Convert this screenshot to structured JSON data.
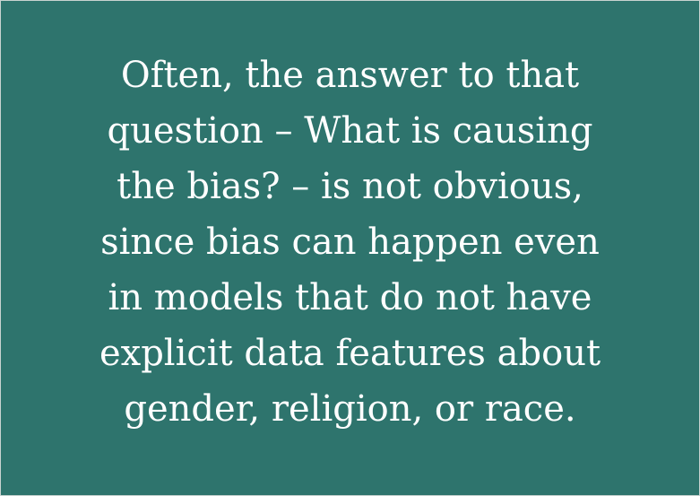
{
  "quote": {
    "lines": [
      "Often, the answer to that",
      "question – What is causing",
      "the bias? – is not obvious,",
      "since bias can happen even",
      "in models that do not have",
      "explicit data features about",
      "gender, religion, or race."
    ]
  },
  "colors": {
    "background": "#2e746d",
    "text": "#ffffff"
  }
}
